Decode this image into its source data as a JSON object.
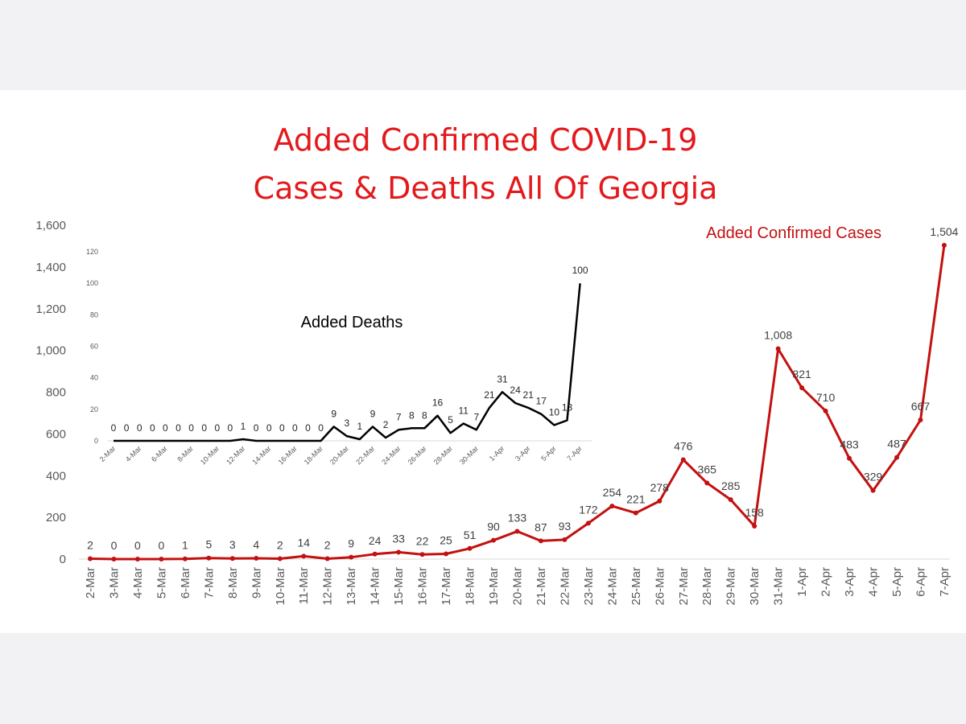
{
  "title": {
    "line1": "Added Confirmed COVID-19",
    "line2": "Cases & Deaths All Of Georgia"
  },
  "colors": {
    "cases": "#c41010",
    "deaths": "#000000",
    "title": "#e3191c",
    "page_background": "#f2f2f4",
    "card_background": "#ffffff"
  },
  "chart_data": [
    {
      "type": "line",
      "series": [
        {
          "name": "Added Confirmed Cases",
          "values": [
            2,
            0,
            0,
            0,
            1,
            5,
            3,
            4,
            2,
            14,
            2,
            9,
            24,
            33,
            22,
            25,
            51,
            90,
            133,
            87,
            93,
            172,
            254,
            221,
            278,
            476,
            365,
            285,
            158,
            1008,
            821,
            710,
            483,
            329,
            487,
            667,
            1504
          ],
          "value_labels": [
            "2",
            "0",
            "0",
            "0",
            "1",
            "5",
            "3",
            "4",
            "2",
            "14",
            "2",
            "9",
            "24",
            "33",
            "22",
            "25",
            "51",
            "90",
            "133",
            "87",
            "93",
            "172",
            "254",
            "221",
            "278",
            "476",
            "365",
            "285",
            "158",
            "1,008",
            "821",
            "710",
            "483",
            "329",
            "487",
            "667",
            "1,504"
          ]
        }
      ],
      "categories": [
        "2-Mar",
        "3-Mar",
        "4-Mar",
        "5-Mar",
        "6-Mar",
        "7-Mar",
        "8-Mar",
        "9-Mar",
        "10-Mar",
        "11-Mar",
        "12-Mar",
        "13-Mar",
        "14-Mar",
        "15-Mar",
        "16-Mar",
        "17-Mar",
        "18-Mar",
        "19-Mar",
        "20-Mar",
        "21-Mar",
        "22-Mar",
        "23-Mar",
        "24-Mar",
        "25-Mar",
        "26-Mar",
        "27-Mar",
        "28-Mar",
        "29-Mar",
        "30-Mar",
        "31-Mar",
        "1-Apr",
        "2-Apr",
        "3-Apr",
        "4-Apr",
        "5-Apr",
        "6-Apr",
        "7-Apr"
      ],
      "ylim": [
        0,
        1600
      ],
      "y_ticks": [
        0,
        200,
        400,
        600,
        800,
        1000,
        1200,
        1400,
        1600
      ],
      "y_tick_labels": [
        "0",
        "200",
        "400",
        "600",
        "800",
        "1,000",
        "1,200",
        "1,400",
        "1,600"
      ],
      "grid": false,
      "legend": "none"
    },
    {
      "type": "line",
      "series": [
        {
          "name": "Added Deaths",
          "values": [
            0,
            0,
            0,
            0,
            0,
            0,
            0,
            0,
            0,
            0,
            1,
            0,
            0,
            0,
            0,
            0,
            0,
            9,
            3,
            1,
            9,
            2,
            7,
            8,
            8,
            16,
            5,
            11,
            7,
            21,
            31,
            24,
            21,
            17,
            10,
            13,
            100
          ],
          "value_labels": [
            "0",
            "0",
            "0",
            "0",
            "0",
            "0",
            "0",
            "0",
            "0",
            "0",
            "1",
            "0",
            "0",
            "0",
            "0",
            "0",
            "0",
            "9",
            "3",
            "1",
            "9",
            "2",
            "7",
            "8",
            "8",
            "16",
            "5",
            "11",
            "7",
            "21",
            "31",
            "24",
            "21",
            "17",
            "10",
            "13",
            "100"
          ]
        }
      ],
      "categories": [
        "2-Mar",
        "3-Mar",
        "4-Mar",
        "5-Mar",
        "6-Mar",
        "7-Mar",
        "8-Mar",
        "9-Mar",
        "10-Mar",
        "11-Mar",
        "12-Mar",
        "13-Mar",
        "14-Mar",
        "15-Mar",
        "16-Mar",
        "17-Mar",
        "18-Mar",
        "19-Mar",
        "20-Mar",
        "21-Mar",
        "22-Mar",
        "23-Mar",
        "24-Mar",
        "25-Mar",
        "26-Mar",
        "27-Mar",
        "28-Mar",
        "29-Mar",
        "30-Mar",
        "31-Mar",
        "1-Apr",
        "2-Apr",
        "3-Apr",
        "4-Apr",
        "5-Apr",
        "6-Apr",
        "7-Apr"
      ],
      "visible_categories": [
        "2-Mar",
        "4-Mar",
        "6-Mar",
        "8-Mar",
        "10-Mar",
        "12-Mar",
        "14-Mar",
        "16-Mar",
        "18-Mar",
        "20-Mar",
        "22-Mar",
        "24-Mar",
        "26-Mar",
        "28-Mar",
        "30-Mar",
        "1-Apr",
        "3-Apr",
        "5-Apr",
        "7-Apr"
      ],
      "ylim": [
        0,
        120
      ],
      "y_ticks": [
        0,
        20,
        40,
        60,
        80,
        100,
        120
      ],
      "y_tick_labels": [
        "0",
        "20",
        "40",
        "60",
        "80",
        "100",
        "120"
      ],
      "grid": false,
      "legend": "none"
    }
  ]
}
